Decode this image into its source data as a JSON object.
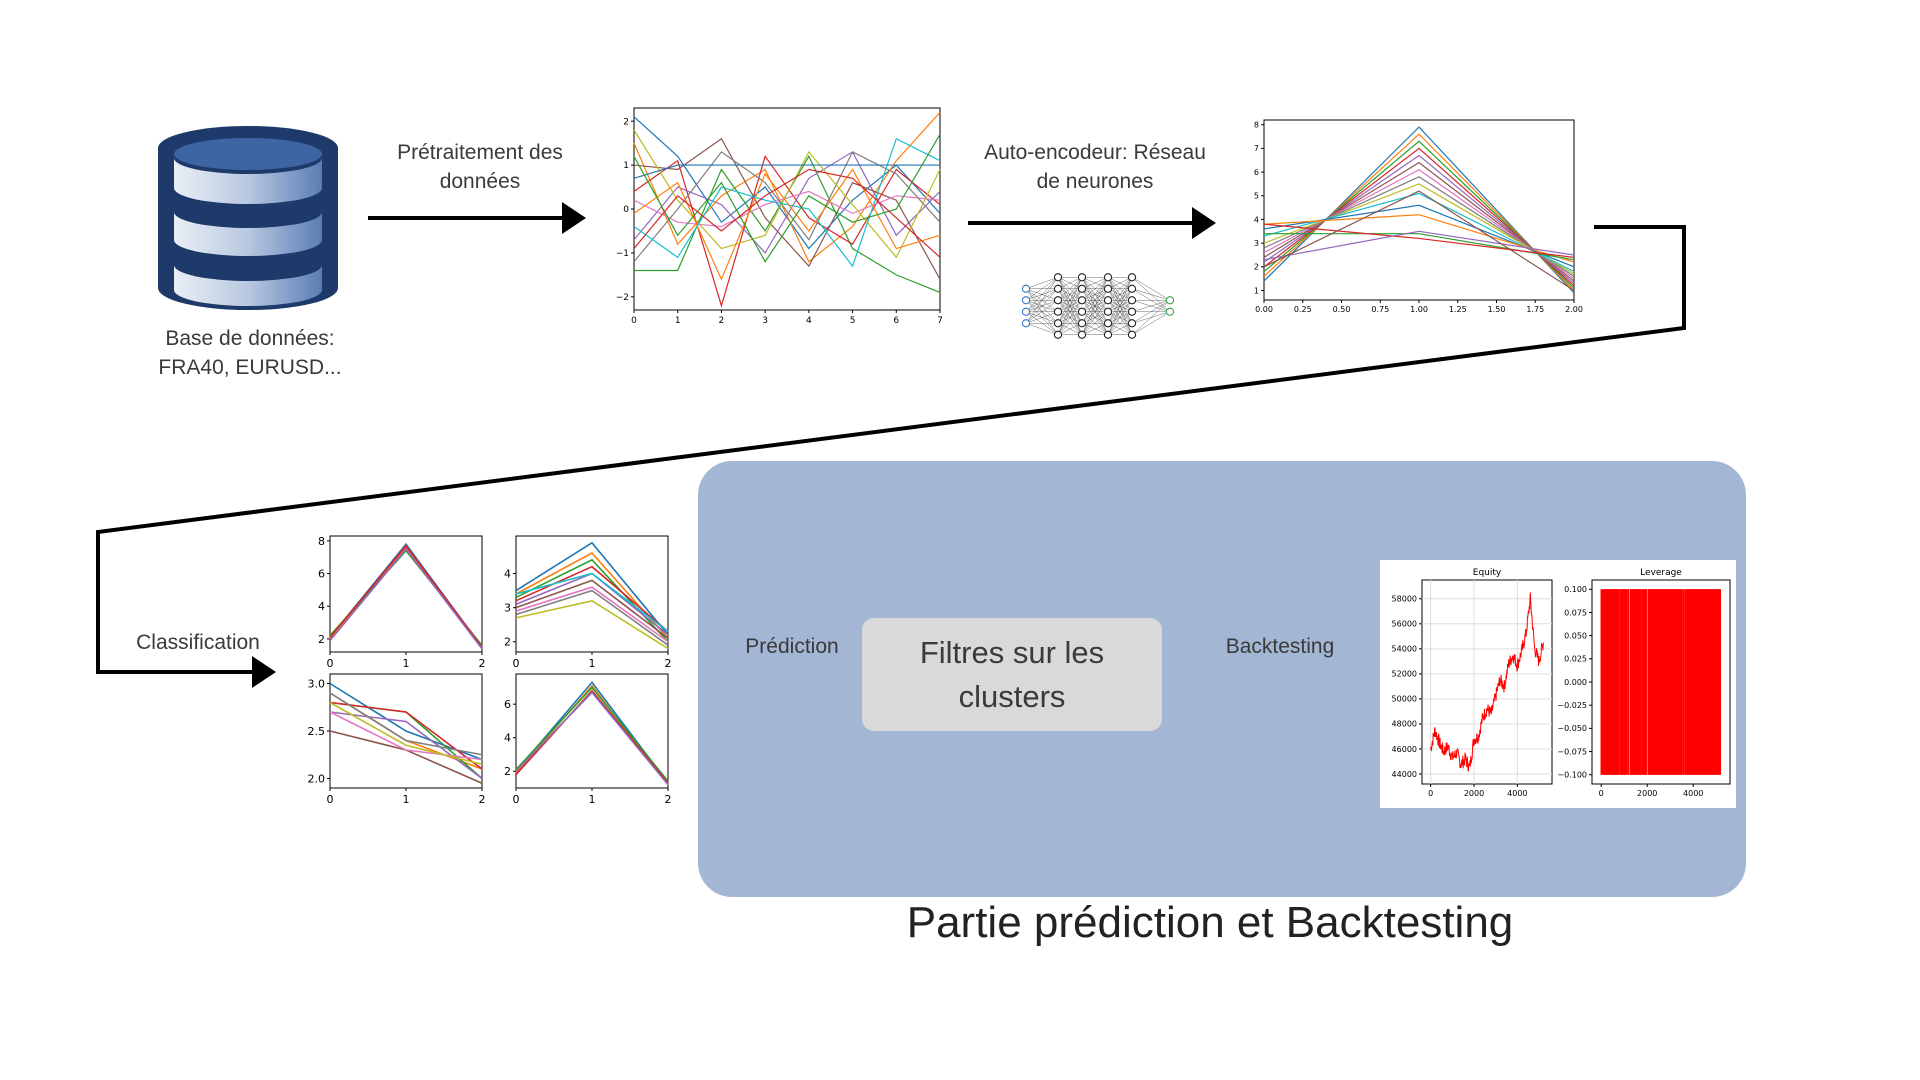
{
  "labels": {
    "database": "Base de données:\nFRA40, EURUSD...",
    "preprocessing": "Prétraitement des\ndonnées",
    "autoencoder": "Auto-encodeur: Réseau\nde neurones",
    "classification": "Classification",
    "prediction": "Prédiction",
    "filter": "Filtres sur les clusters",
    "backtesting": "Backtesting",
    "section_title": "Partie prédiction et Backtesting"
  },
  "colors": {
    "panel": "#a3b6d3",
    "filter_box": "#d9d9d9",
    "arrow": "#000000",
    "db_blue": "#3a5f9a",
    "equity_line": "#ff0000"
  },
  "icons": {
    "database": "database-icon",
    "network": "neural-network-icon"
  },
  "chart_data": [
    {
      "id": "preprocessed",
      "type": "line",
      "xticks": [
        "0",
        "1",
        "2",
        "3",
        "4",
        "5",
        "6",
        "7"
      ],
      "yticks": [
        "2",
        "1",
        "0",
        "−1",
        "−2"
      ],
      "xlim": [
        0,
        7
      ],
      "ylim": [
        -2.3,
        2.3
      ],
      "series": [
        {
          "values": [
            2.1,
            1.2,
            -0.3,
            0.5,
            -0.9,
            0.2,
            1.0,
            -0.1
          ]
        },
        {
          "values": [
            1.5,
            -0.8,
            0.3,
            0.9,
            -1.2,
            -0.4,
            1.1,
            2.2
          ]
        },
        {
          "values": [
            -1.4,
            -1.4,
            0.9,
            -0.5,
            1.2,
            -0.9,
            -1.5,
            -1.9
          ]
        },
        {
          "values": [
            0.4,
            1.1,
            -2.2,
            1.2,
            -0.2,
            -0.8,
            0.9,
            0.1
          ]
        },
        {
          "values": [
            -0.7,
            0.5,
            0.1,
            -1.0,
            0.7,
            1.3,
            -0.6,
            0.4
          ]
        },
        {
          "values": [
            1.0,
            0.9,
            1.6,
            -0.2,
            -1.3,
            0.6,
            0.2,
            -1.6
          ]
        },
        {
          "values": [
            0.2,
            -0.3,
            -0.4,
            0.1,
            0.4,
            -0.1,
            0.3,
            0.2
          ]
        },
        {
          "values": [
            -1.2,
            0.0,
            1.3,
            0.6,
            -0.7,
            1.3,
            0.8,
            -0.3
          ]
        },
        {
          "values": [
            1.8,
            0.2,
            -0.9,
            -0.6,
            1.3,
            0.1,
            -1.1,
            0.9
          ]
        },
        {
          "values": [
            -0.4,
            -1.1,
            0.5,
            0.2,
            0.0,
            -1.3,
            1.6,
            1.1
          ]
        },
        {
          "values": [
            0.7,
            1.0,
            1.0,
            1.0,
            1.0,
            1.0,
            1.0,
            1.0
          ]
        },
        {
          "values": [
            -0.1,
            0.6,
            -1.6,
            0.8,
            -0.5,
            0.9,
            -0.9,
            -0.6
          ]
        },
        {
          "values": [
            1.2,
            -0.6,
            0.6,
            -1.2,
            0.3,
            -0.3,
            0.0,
            1.7
          ]
        },
        {
          "values": [
            -0.9,
            0.3,
            -0.5,
            0.3,
            0.9,
            0.7,
            -0.2,
            -1.1
          ]
        }
      ]
    },
    {
      "id": "encoded",
      "type": "line",
      "xticks": [
        "0.00",
        "0.25",
        "0.50",
        "0.75",
        "1.00",
        "1.25",
        "1.50",
        "1.75",
        "2.00"
      ],
      "yticks": [
        "8",
        "7",
        "6",
        "5",
        "4",
        "3",
        "2",
        "1"
      ],
      "xlim": [
        0,
        2
      ],
      "ylim": [
        0.6,
        8.2
      ],
      "series": [
        {
          "values": [
            1.4,
            7.9,
            0.9
          ]
        },
        {
          "values": [
            1.6,
            7.6,
            1.0
          ]
        },
        {
          "values": [
            1.8,
            7.3,
            1.1
          ]
        },
        {
          "values": [
            2.0,
            7.0,
            1.2
          ]
        },
        {
          "values": [
            2.2,
            6.7,
            1.3
          ]
        },
        {
          "values": [
            2.4,
            6.4,
            1.4
          ]
        },
        {
          "values": [
            2.6,
            6.1,
            1.5
          ]
        },
        {
          "values": [
            2.8,
            5.8,
            1.6
          ]
        },
        {
          "values": [
            3.0,
            5.5,
            1.7
          ]
        },
        {
          "values": [
            3.3,
            5.1,
            1.8
          ]
        },
        {
          "values": [
            3.6,
            4.6,
            2.0
          ]
        },
        {
          "values": [
            3.8,
            4.2,
            2.2
          ]
        },
        {
          "values": [
            3.4,
            3.4,
            2.3
          ]
        },
        {
          "values": [
            3.8,
            3.2,
            2.4
          ]
        },
        {
          "values": [
            2.3,
            3.5,
            2.5
          ]
        },
        {
          "values": [
            2.0,
            5.2,
            1.0
          ]
        }
      ]
    },
    {
      "id": "cluster-1",
      "type": "line",
      "xticks": [
        "0",
        "1",
        "2"
      ],
      "yticks": [
        "8",
        "6",
        "4",
        "2"
      ],
      "xlim": [
        0,
        2
      ],
      "ylim": [
        1.2,
        8.3
      ],
      "series": [
        {
          "values": [
            2.1,
            7.8,
            1.5
          ]
        },
        {
          "values": [
            2.0,
            7.6,
            1.4
          ]
        },
        {
          "values": [
            2.2,
            7.4,
            1.6
          ]
        },
        {
          "values": [
            2.1,
            7.7,
            1.5
          ]
        },
        {
          "values": [
            1.9,
            7.5,
            1.4
          ]
        }
      ]
    },
    {
      "id": "cluster-2",
      "type": "line",
      "xticks": [
        "0",
        "1",
        "2"
      ],
      "yticks": [
        "4",
        "3",
        "2"
      ],
      "xlim": [
        0,
        2
      ],
      "ylim": [
        1.7,
        5.1
      ],
      "series": [
        {
          "values": [
            3.5,
            4.9,
            2.2
          ]
        },
        {
          "values": [
            3.4,
            4.6,
            2.1
          ]
        },
        {
          "values": [
            3.3,
            4.4,
            2.0
          ]
        },
        {
          "values": [
            3.2,
            4.2,
            2.3
          ]
        },
        {
          "values": [
            3.1,
            4.0,
            2.2
          ]
        },
        {
          "values": [
            3.0,
            3.8,
            2.1
          ]
        },
        {
          "values": [
            2.9,
            3.6,
            2.0
          ]
        },
        {
          "values": [
            2.8,
            3.5,
            1.9
          ]
        },
        {
          "values": [
            2.7,
            3.2,
            1.8
          ]
        },
        {
          "values": [
            3.4,
            4.0,
            2.3
          ]
        }
      ]
    },
    {
      "id": "cluster-3",
      "type": "line",
      "xticks": [
        "0",
        "1",
        "2"
      ],
      "yticks": [
        "3.0",
        "2.5",
        "2.0"
      ],
      "xlim": [
        0,
        2
      ],
      "ylim": [
        1.9,
        3.1
      ],
      "series": [
        {
          "values": [
            3.0,
            2.5,
            2.2
          ]
        },
        {
          "values": [
            2.9,
            2.4,
            2.1
          ]
        },
        {
          "values": [
            2.8,
            2.7,
            2.0
          ]
        },
        {
          "values": [
            2.8,
            2.7,
            2.1
          ]
        },
        {
          "values": [
            2.7,
            2.6,
            2.0
          ]
        },
        {
          "values": [
            2.5,
            2.3,
            1.95
          ]
        },
        {
          "values": [
            2.7,
            2.3,
            2.2
          ]
        },
        {
          "values": [
            2.9,
            2.4,
            2.25
          ]
        },
        {
          "values": [
            2.8,
            2.35,
            2.15
          ]
        }
      ]
    },
    {
      "id": "cluster-4",
      "type": "line",
      "xticks": [
        "0",
        "1",
        "2"
      ],
      "yticks": [
        "6",
        "4",
        "2"
      ],
      "xlim": [
        0,
        2
      ],
      "ylim": [
        1.0,
        7.8
      ],
      "series": [
        {
          "values": [
            2.0,
            7.3,
            1.3
          ]
        },
        {
          "values": [
            1.9,
            7.1,
            1.2
          ]
        },
        {
          "values": [
            2.1,
            7.0,
            1.4
          ]
        },
        {
          "values": [
            1.8,
            6.8,
            1.3
          ]
        },
        {
          "values": [
            2.0,
            6.7,
            1.2
          ]
        }
      ]
    },
    {
      "id": "equity",
      "type": "line",
      "title": "Equity",
      "xticks": [
        "0",
        "2000",
        "4000"
      ],
      "yticks": [
        "58000",
        "56000",
        "54000",
        "52000",
        "50000",
        "48000",
        "46000",
        "44000"
      ],
      "xlim": [
        -400,
        5600
      ],
      "ylim": [
        43200,
        59500
      ],
      "series": [
        {
          "values_note": "",
          "x": [
            0,
            200,
            400,
            600,
            800,
            1000,
            1200,
            1400,
            1600,
            1800,
            2000,
            2200,
            2400,
            2600,
            2800,
            3000,
            3200,
            3400,
            3600,
            3800,
            4000,
            4200,
            4400,
            4600,
            4800,
            5000,
            5200
          ],
          "values": [
            46000,
            47500,
            46500,
            45800,
            46200,
            45300,
            45700,
            44800,
            45200,
            44500,
            46800,
            47000,
            48500,
            49200,
            48800,
            50200,
            51500,
            51000,
            52800,
            53500,
            52700,
            53800,
            55200,
            58000,
            54000,
            53000,
            54500
          ]
        }
      ]
    },
    {
      "id": "leverage",
      "type": "bar",
      "title": "Leverage",
      "xticks": [
        "0",
        "2000",
        "4000"
      ],
      "yticks": [
        "0.100",
        "0.075",
        "0.050",
        "0.025",
        "0.000",
        "−0.025",
        "−0.050",
        "−0.075",
        "−0.100"
      ],
      "xlim": [
        -400,
        5600
      ],
      "ylim": [
        -0.11,
        0.11
      ]
    }
  ]
}
